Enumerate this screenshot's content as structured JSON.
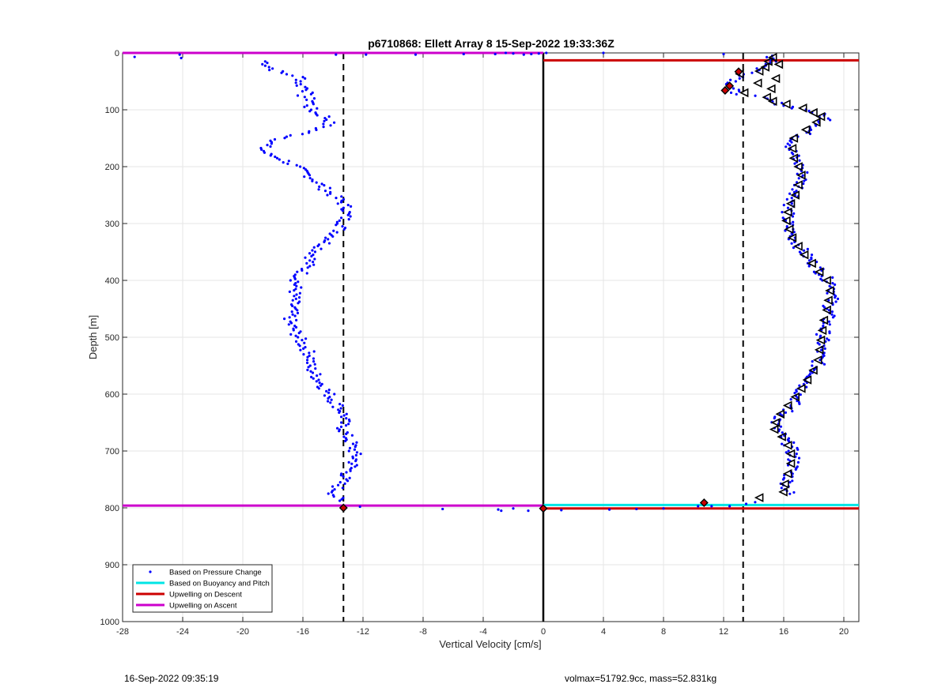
{
  "chart_data": {
    "type": "scatter",
    "title": "p6710868: Ellett Array 8 15-Sep-2022 19:33:36Z",
    "xlabel": "Vertical Velocity [cm/s]",
    "ylabel": "Depth [m]",
    "xlim": [
      -28,
      21
    ],
    "ylim": [
      0,
      1000
    ],
    "y_reversed": true,
    "grid": true,
    "xticks": [
      -28,
      -24,
      -20,
      -16,
      -12,
      -8,
      -4,
      0,
      4,
      8,
      12,
      16,
      20
    ],
    "yticks": [
      0,
      100,
      200,
      300,
      400,
      500,
      600,
      700,
      800,
      900,
      1000
    ],
    "legend_position": "bottom-left",
    "legend": [
      {
        "label": "Based on Pressure Change",
        "color": "#0000ff",
        "marker": "dot"
      },
      {
        "label": "Based on Buoyancy and Pitch",
        "color": "#00e5e5",
        "marker": "line"
      },
      {
        "label": "Upwelling on Descent",
        "color": "#cc0000",
        "marker": "line"
      },
      {
        "label": "Upwelling on Ascent",
        "color": "#cc00cc",
        "marker": "line"
      }
    ],
    "dashed_reference_lines_x": [
      -13.3,
      13.3
    ],
    "zero_line_x": 0,
    "pressure_change_descent_profile": [
      [
        -18.5,
        15
      ],
      [
        -18.2,
        25
      ],
      [
        -17.5,
        35
      ],
      [
        -16.5,
        40
      ],
      [
        -16,
        45
      ],
      [
        -16.3,
        55
      ],
      [
        -15.5,
        65
      ],
      [
        -16,
        75
      ],
      [
        -15.3,
        85
      ],
      [
        -15.6,
        95
      ],
      [
        -15.2,
        105
      ],
      [
        -14.5,
        112
      ],
      [
        -14.2,
        120
      ],
      [
        -14.6,
        130
      ],
      [
        -15.5,
        138
      ],
      [
        -16.5,
        145
      ],
      [
        -17.5,
        152
      ],
      [
        -18.5,
        162
      ],
      [
        -18.7,
        170
      ],
      [
        -18.4,
        178
      ],
      [
        -17.5,
        185
      ],
      [
        -16.8,
        195
      ],
      [
        -16.2,
        205
      ],
      [
        -15.6,
        215
      ],
      [
        -15,
        228
      ],
      [
        -14.5,
        240
      ],
      [
        -14,
        250
      ],
      [
        -13.5,
        260
      ],
      [
        -13,
        275
      ],
      [
        -13.2,
        290
      ],
      [
        -13.4,
        305
      ],
      [
        -13.8,
        318
      ],
      [
        -14.3,
        330
      ],
      [
        -14.8,
        342
      ],
      [
        -15.3,
        355
      ],
      [
        -15.6,
        370
      ],
      [
        -16,
        385
      ],
      [
        -16.4,
        400
      ],
      [
        -16.5,
        415
      ],
      [
        -16.6,
        430
      ],
      [
        -16.7,
        445
      ],
      [
        -16.8,
        460
      ],
      [
        -16.9,
        475
      ],
      [
        -16.5,
        490
      ],
      [
        -16.2,
        505
      ],
      [
        -15.8,
        520
      ],
      [
        -15.4,
        535
      ],
      [
        -15.6,
        550
      ],
      [
        -15.2,
        565
      ],
      [
        -14.8,
        580
      ],
      [
        -14.4,
        595
      ],
      [
        -14,
        610
      ],
      [
        -13.5,
        625
      ],
      [
        -13.2,
        640
      ],
      [
        -13.4,
        655
      ],
      [
        -13.2,
        670
      ],
      [
        -12.8,
        685
      ],
      [
        -12.6,
        700
      ],
      [
        -12.5,
        715
      ],
      [
        -12.8,
        730
      ],
      [
        -13.2,
        745
      ],
      [
        -13.6,
        760
      ],
      [
        -13.9,
        775
      ],
      [
        -13.6,
        790
      ]
    ],
    "pressure_change_ascent_profile": [
      [
        15.2,
        5
      ],
      [
        15.5,
        15
      ],
      [
        14.8,
        22
      ],
      [
        14.3,
        30
      ],
      [
        13.5,
        40
      ],
      [
        12.7,
        50
      ],
      [
        12.4,
        60
      ],
      [
        12.8,
        70
      ],
      [
        14.3,
        78
      ],
      [
        15.5,
        88
      ],
      [
        16.5,
        95
      ],
      [
        17.8,
        102
      ],
      [
        18.6,
        110
      ],
      [
        18.9,
        118
      ],
      [
        18.3,
        128
      ],
      [
        17.5,
        140
      ],
      [
        16.8,
        152
      ],
      [
        16.5,
        165
      ],
      [
        16.6,
        178
      ],
      [
        16.9,
        192
      ],
      [
        17.2,
        205
      ],
      [
        17.3,
        218
      ],
      [
        17.1,
        230
      ],
      [
        16.9,
        245
      ],
      [
        16.6,
        260
      ],
      [
        16.3,
        275
      ],
      [
        16.2,
        290
      ],
      [
        16.3,
        305
      ],
      [
        16.5,
        320
      ],
      [
        16.9,
        335
      ],
      [
        17.3,
        350
      ],
      [
        17.8,
        365
      ],
      [
        18.3,
        380
      ],
      [
        18.8,
        395
      ],
      [
        19.4,
        410
      ],
      [
        19.3,
        425
      ],
      [
        19.1,
        440
      ],
      [
        19,
        455
      ],
      [
        18.9,
        470
      ],
      [
        18.7,
        485
      ],
      [
        18.6,
        500
      ],
      [
        18.5,
        515
      ],
      [
        18.4,
        530
      ],
      [
        18.3,
        545
      ],
      [
        18.1,
        560
      ],
      [
        17.8,
        572
      ],
      [
        17.4,
        585
      ],
      [
        17.1,
        598
      ],
      [
        16.8,
        612
      ],
      [
        16.4,
        625
      ],
      [
        15.8,
        640
      ],
      [
        15.4,
        652
      ],
      [
        15.6,
        665
      ],
      [
        16,
        678
      ],
      [
        16.4,
        690
      ],
      [
        16.6,
        705
      ],
      [
        16.7,
        720
      ],
      [
        16.5,
        735
      ],
      [
        16.3,
        750
      ],
      [
        16.2,
        765
      ],
      [
        16.4,
        778
      ]
    ],
    "surface_outliers": [
      [
        -27.2,
        7
      ],
      [
        -24.2,
        3
      ],
      [
        -24.1,
        9
      ],
      [
        -13.8,
        3
      ],
      [
        -11.8,
        3
      ],
      [
        -8.5,
        3
      ],
      [
        -5.3,
        2
      ],
      [
        -3.2,
        2
      ],
      [
        -2.5,
        0
      ],
      [
        -2,
        1
      ],
      [
        -1.3,
        3
      ],
      [
        -0.8,
        2
      ],
      [
        -0.3,
        1
      ],
      [
        0.2,
        0
      ],
      [
        4,
        0
      ],
      [
        12,
        2
      ]
    ],
    "bottom_outliers": [
      [
        -12.2,
        798
      ],
      [
        -6.7,
        802
      ],
      [
        -3,
        803
      ],
      [
        -2.8,
        805
      ],
      [
        -2,
        801
      ],
      [
        -1,
        805
      ],
      [
        1.2,
        804
      ],
      [
        4.4,
        803
      ],
      [
        6.2,
        802
      ],
      [
        8,
        801
      ],
      [
        10.3,
        797
      ],
      [
        11.2,
        797
      ],
      [
        12.4,
        797
      ],
      [
        13.5,
        793
      ],
      [
        14.1,
        790
      ]
    ],
    "triangle_markers": [
      [
        15.3,
        8
      ],
      [
        15,
        15
      ],
      [
        15.7,
        20
      ],
      [
        14.8,
        25
      ],
      [
        14.4,
        32
      ],
      [
        13.1,
        37
      ],
      [
        15.5,
        45
      ],
      [
        14.3,
        53
      ],
      [
        15.2,
        63
      ],
      [
        13.4,
        70
      ],
      [
        14.9,
        78
      ],
      [
        15.3,
        85
      ],
      [
        16.2,
        90
      ],
      [
        17.3,
        97
      ],
      [
        18,
        105
      ],
      [
        18.5,
        112
      ],
      [
        18.2,
        122
      ],
      [
        17.5,
        135
      ],
      [
        16.7,
        150
      ],
      [
        16.6,
        168
      ],
      [
        16.7,
        185
      ],
      [
        17,
        200
      ],
      [
        17.2,
        215
      ],
      [
        17,
        232
      ],
      [
        16.8,
        250
      ],
      [
        16.5,
        265
      ],
      [
        16.3,
        280
      ],
      [
        16.2,
        295
      ],
      [
        16.4,
        310
      ],
      [
        16.6,
        325
      ],
      [
        17,
        340
      ],
      [
        17.4,
        355
      ],
      [
        17.9,
        370
      ],
      [
        18.4,
        385
      ],
      [
        18.9,
        400
      ],
      [
        19.1,
        418
      ],
      [
        19,
        435
      ],
      [
        18.9,
        452
      ],
      [
        18.7,
        470
      ],
      [
        18.6,
        488
      ],
      [
        18.5,
        505
      ],
      [
        18.4,
        522
      ],
      [
        18.3,
        540
      ],
      [
        18,
        558
      ],
      [
        17.6,
        575
      ],
      [
        17.2,
        590
      ],
      [
        16.8,
        605
      ],
      [
        16.3,
        620
      ],
      [
        15.8,
        635
      ],
      [
        15.5,
        650
      ],
      [
        15.4,
        662
      ],
      [
        15.9,
        675
      ],
      [
        16.3,
        690
      ],
      [
        16.5,
        705
      ],
      [
        16.5,
        722
      ],
      [
        16.3,
        740
      ],
      [
        16.1,
        758
      ],
      [
        16,
        772
      ],
      [
        14.4,
        782
      ]
    ],
    "red_diamonds": [
      [
        13,
        33
      ],
      [
        12.4,
        58
      ],
      [
        12.1,
        66
      ],
      [
        10.7,
        791
      ],
      [
        -13.3,
        800
      ],
      [
        0,
        801
      ]
    ],
    "upwelling_on_ascent_segments": [
      {
        "x": [
          -28,
          0
        ],
        "y": 0
      },
      {
        "x": [
          -28,
          0
        ],
        "y": 796
      }
    ],
    "upwelling_on_descent_segments": [
      {
        "x": [
          0,
          21
        ],
        "y": 13
      },
      {
        "x": [
          0,
          21
        ],
        "y": 801
      }
    ],
    "buoyancy_pitch_segments": [
      {
        "x": [
          0,
          21
        ],
        "y": 795
      }
    ]
  },
  "footer": {
    "timestamp": "16-Sep-2022 09:35:19",
    "params": "volmax=51792.9cc, mass=52.831kg"
  }
}
